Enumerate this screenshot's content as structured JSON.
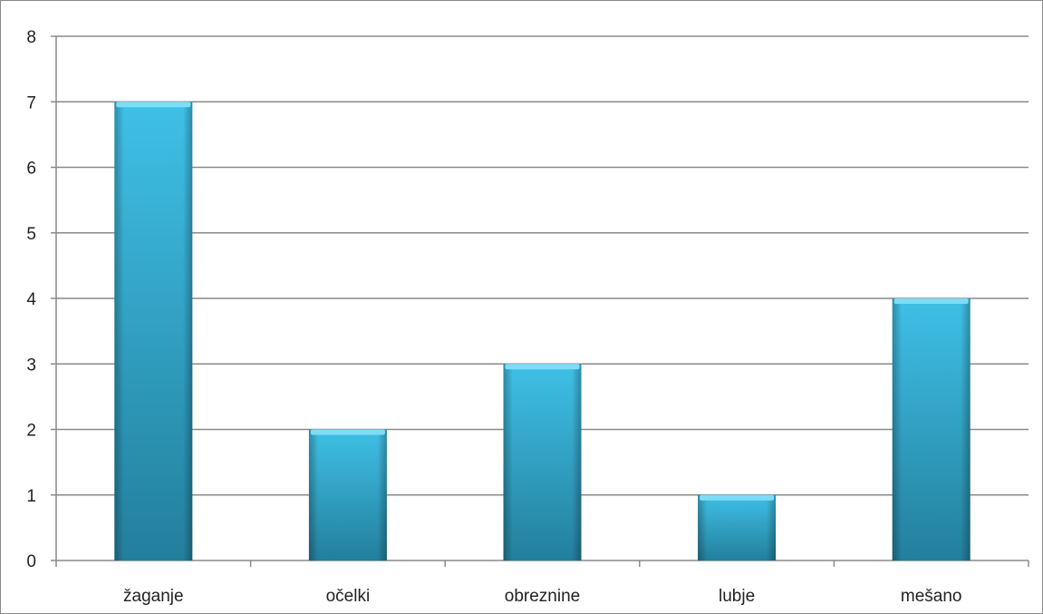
{
  "chart_data": {
    "type": "bar",
    "categories": [
      "žaganje",
      "očelki",
      "obreznine",
      "lubje",
      "mešano"
    ],
    "values": [
      7,
      2,
      3,
      1,
      4
    ],
    "ylim": [
      0,
      8
    ],
    "yticks": [
      0,
      1,
      2,
      3,
      4,
      5,
      6,
      7,
      8
    ],
    "title": "",
    "xlabel": "",
    "ylabel": "",
    "grid": true,
    "legend": "none",
    "colors": {
      "bar_light": "#3fc0e6",
      "bar_dark": "#237f9c",
      "bar_cap": "#7fdcf7",
      "grid": "#8a8a8a",
      "axis": "#8a8a8a"
    }
  }
}
